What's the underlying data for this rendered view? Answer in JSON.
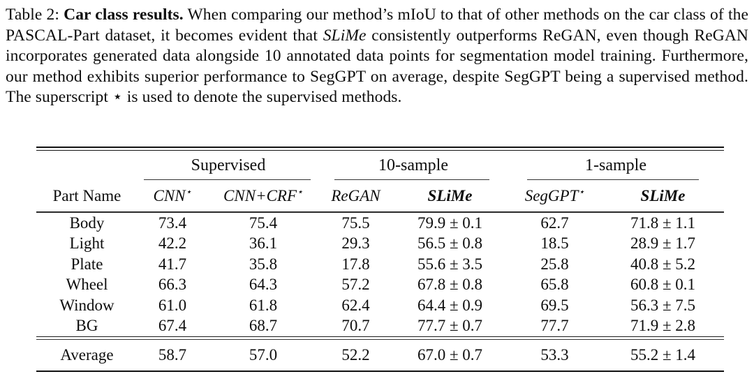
{
  "caption": {
    "segments": [
      {
        "text": "Table 2: ",
        "style": "plain"
      },
      {
        "text": "Car class results.",
        "style": "bold"
      },
      {
        "text": " When comparing our method’s mIoU to that of other methods on the car class of the PASCAL-Part dataset, it becomes evident that ",
        "style": "plain"
      },
      {
        "text": "SLiMe",
        "style": "italic"
      },
      {
        "text": " consistently outperforms ReGAN, even though ReGAN incorporates generated data alongside 10 annotated data points for segmentation model training. Furthermore, our method exhibits superior performance to SegGPT on average, despite SegGPT being a supervised method. The superscript ⋆ is used to denote the supervised methods.",
        "style": "plain"
      }
    ]
  },
  "table": {
    "group_headers": [
      {
        "label": "Supervised",
        "span": 2
      },
      {
        "label": "10-sample",
        "span": 2
      },
      {
        "label": "1-sample",
        "span": 2
      }
    ],
    "columns": [
      {
        "label": "Part Name",
        "sup": "",
        "style": "roman"
      },
      {
        "label": "CNN",
        "sup": "⋆",
        "style": "italic"
      },
      {
        "label": "CNN+CRF",
        "sup": "⋆",
        "style": "italic"
      },
      {
        "label": "ReGAN",
        "sup": "",
        "style": "italic"
      },
      {
        "label": "SLiMe",
        "sup": "",
        "style": "bold-italic"
      },
      {
        "label": "SegGPT",
        "sup": "⋆",
        "style": "italic"
      },
      {
        "label": "SLiMe",
        "sup": "",
        "style": "bold-italic"
      }
    ],
    "rows": [
      {
        "part": "Body",
        "values": [
          {
            "text": "73.4"
          },
          {
            "text": "75.4"
          },
          {
            "text": "75.5"
          },
          {
            "text": "79.9 ± 0.1",
            "bold": true
          },
          {
            "text": "62.7"
          },
          {
            "text": "71.8 ± 1.1",
            "bold": true
          }
        ]
      },
      {
        "part": "Light",
        "values": [
          {
            "text": "42.2"
          },
          {
            "text": "36.1"
          },
          {
            "text": "29.3"
          },
          {
            "text": "56.5 ± 0.8",
            "bold": true
          },
          {
            "text": "18.5"
          },
          {
            "text": "28.9 ± 1.7",
            "bold": true
          }
        ]
      },
      {
        "part": "Plate",
        "values": [
          {
            "text": "41.7"
          },
          {
            "text": "35.8"
          },
          {
            "text": "17.8"
          },
          {
            "text": "55.6 ± 3.5",
            "bold": true
          },
          {
            "text": "25.8"
          },
          {
            "text": "40.8 ± 5.2",
            "bold": true
          }
        ]
      },
      {
        "part": "Wheel",
        "values": [
          {
            "text": "66.3"
          },
          {
            "text": "64.3"
          },
          {
            "text": "57.2"
          },
          {
            "text": "67.8 ± 0.8",
            "bold": true
          },
          {
            "text": "65.8",
            "bold": true
          },
          {
            "text": "60.8 ± 0.1"
          }
        ]
      },
      {
        "part": "Window",
        "values": [
          {
            "text": "61.0"
          },
          {
            "text": "61.8"
          },
          {
            "text": "62.4"
          },
          {
            "text": "64.4 ± 0.9",
            "bold": true
          },
          {
            "text": "69.5",
            "bold": true
          },
          {
            "text": "56.3 ± 7.5"
          }
        ]
      },
      {
        "part": "BG",
        "values": [
          {
            "text": "67.4"
          },
          {
            "text": "68.7"
          },
          {
            "text": "70.7"
          },
          {
            "text": "77.7 ± 0.7",
            "bold": true
          },
          {
            "text": "77.7",
            "bold": true
          },
          {
            "text": "71.9 ± 2.8"
          }
        ]
      }
    ],
    "average": {
      "part": "Average",
      "values": [
        {
          "text": "58.7"
        },
        {
          "text": "57.0"
        },
        {
          "text": "52.2"
        },
        {
          "text": "67.0 ± 0.7",
          "bold": true
        },
        {
          "text": "53.3"
        },
        {
          "text": "55.2 ± 1.4",
          "bold": true
        }
      ]
    }
  }
}
